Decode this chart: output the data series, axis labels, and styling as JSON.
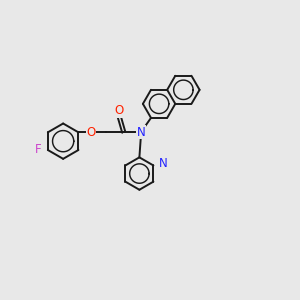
{
  "bg_color": "#e8e8e8",
  "bond_color": "#1a1a1a",
  "bond_width": 1.4,
  "fig_size": [
    3.0,
    3.0
  ],
  "dpi": 100,
  "xlim": [
    0,
    10
  ],
  "ylim": [
    0,
    10
  ],
  "F_color": "#cc44cc",
  "O_color": "#ff2200",
  "N_color": "#2222ff",
  "label_fontsize": 8.5
}
